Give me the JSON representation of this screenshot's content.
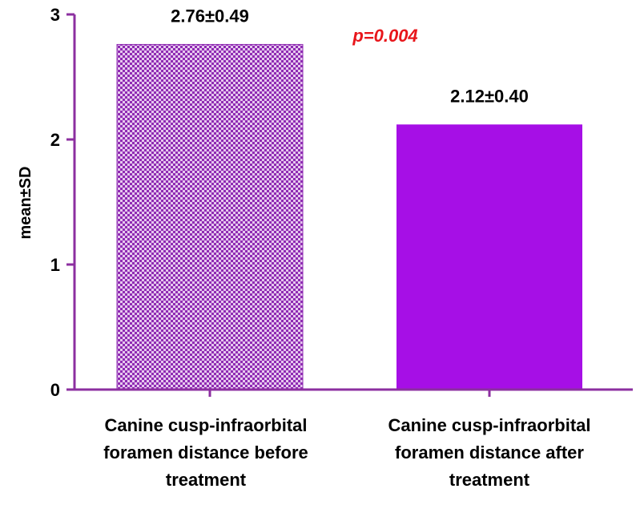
{
  "chart_data": {
    "type": "bar",
    "categories": [
      [
        "Canine cusp-infraorbital",
        "foramen distance before",
        "treatment"
      ],
      [
        "Canine cusp-infraorbital",
        "foramen distance after",
        "treatment"
      ]
    ],
    "values": [
      2.76,
      2.12
    ],
    "data_labels": [
      "2.76±0.49",
      "2.12±0.40"
    ],
    "ylabel": "mean±SD",
    "xlabel": "",
    "ylim": [
      0,
      3
    ],
    "yticks": [
      "0",
      "1",
      "2",
      "3"
    ],
    "annotation": "p=0.004",
    "grid": false,
    "legend": "none",
    "colors": {
      "axis": "#8c2fa0",
      "bar_before_pattern": "#8f2bb3",
      "bar_before_bg": "#e6c8ee",
      "bar_after": "#a60fe6",
      "annotation": "#e8161b"
    }
  }
}
